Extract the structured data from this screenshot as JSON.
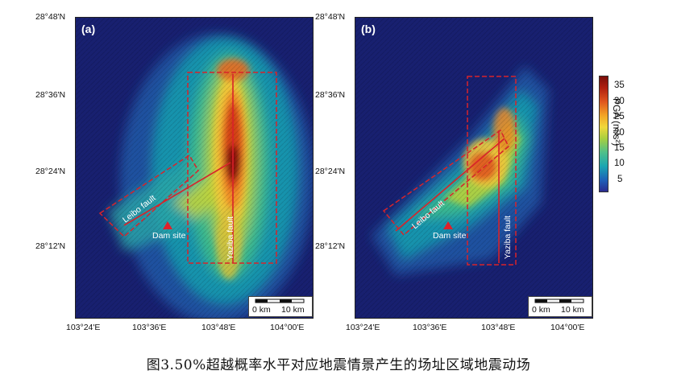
{
  "panels": [
    {
      "letter": "(a)",
      "lat_ticks": [
        "28°48'N",
        "28°36'N",
        "28°24'N",
        "28°12'N"
      ],
      "lon_ticks": [
        "103°24'E",
        "103°36'E",
        "103°48'E",
        "104°00'E"
      ],
      "labels": {
        "leibo": "Leibo fault",
        "yaziba": "Yaziba fault",
        "dam": "Dam site"
      },
      "scale": {
        "zero": "0 km",
        "ten": "10 km"
      }
    },
    {
      "letter": "(b)",
      "lat_ticks": [
        "28°48'N",
        "28°36'N",
        "28°24'N",
        "28°12'N"
      ],
      "lon_ticks": [
        "103°24'E",
        "103°36'E",
        "103°48'E",
        "104°00'E"
      ],
      "labels": {
        "leibo": "Leibo fault",
        "yaziba": "Yaziba fault",
        "dam": "Dam site"
      },
      "scale": {
        "zero": "0 km",
        "ten": "10 km"
      }
    }
  ],
  "colorbar": {
    "title": "PGA (m/s²)",
    "ticks": [
      "35",
      "30",
      "25",
      "20",
      "15",
      "10",
      "5"
    ],
    "colors": {
      "low": "#2b2b8f",
      "mid": "#a8cf3f",
      "high": "#7a0e0a"
    }
  },
  "caption": "图3.50%超越概率水平对应地震情景产生的场址区域地震动场",
  "marker_color": "#e0202a",
  "fault_box_color": "#d8232a"
}
